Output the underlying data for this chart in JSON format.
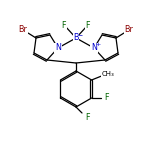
{
  "atom_colors": {
    "Br": "#8B0000",
    "N": "#0000CC",
    "B": "#0000CC",
    "F": "#006400",
    "C": "#000000"
  },
  "bg_color": "#ffffff",
  "lw": 0.9,
  "fs": 5.8
}
